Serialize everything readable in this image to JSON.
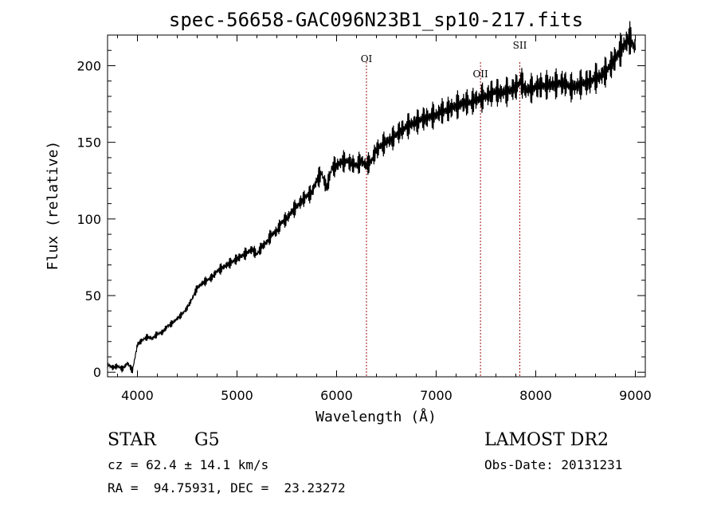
{
  "chart_data": {
    "type": "line",
    "title": "spec-56658-GAC096N23B1_sp10-217.fits",
    "xlabel": "Wavelength (Å)",
    "ylabel": "Flux (relative)",
    "xlim": [
      3700,
      9100
    ],
    "ylim": [
      -3,
      220
    ],
    "x_ticks": [
      4000,
      5000,
      6000,
      7000,
      8000,
      9000
    ],
    "y_ticks": [
      0,
      50,
      100,
      150,
      200
    ],
    "grid": false,
    "line_color": "#000000",
    "marker_color": "#a01010",
    "series": [
      {
        "x": [
          3700,
          3750,
          3800,
          3850,
          3900,
          3950,
          4000,
          4050,
          4100,
          4150,
          4200,
          4250,
          4300,
          4350,
          4400,
          4450,
          4500,
          4550,
          4600,
          4650,
          4700,
          4750,
          4800,
          4850,
          4900,
          4950,
          5000,
          5050,
          5100,
          5150,
          5200,
          5250,
          5300,
          5350,
          5400,
          5450,
          5500,
          5550,
          5600,
          5650,
          5700,
          5750,
          5800,
          5850,
          5900,
          5950,
          6000,
          6050,
          6100,
          6150,
          6200,
          6250,
          6300,
          6350,
          6400,
          6450,
          6500,
          6550,
          6600,
          6650,
          6700,
          6750,
          6800,
          6850,
          6900,
          6950,
          7000,
          7050,
          7100,
          7150,
          7200,
          7250,
          7300,
          7350,
          7400,
          7450,
          7500,
          7550,
          7600,
          7650,
          7700,
          7750,
          7800,
          7850,
          7900,
          7950,
          8000,
          8050,
          8100,
          8150,
          8200,
          8250,
          8300,
          8350,
          8400,
          8450,
          8500,
          8550,
          8600,
          8650,
          8700,
          8750,
          8800,
          8850,
          8900,
          8950,
          9000
        ],
        "y": [
          5,
          3,
          4,
          2,
          6,
          1,
          18,
          21,
          23,
          22,
          25,
          26,
          30,
          32,
          35,
          38,
          42,
          48,
          55,
          58,
          60,
          62,
          66,
          68,
          70,
          72,
          74,
          76,
          78,
          80,
          77,
          82,
          85,
          90,
          92,
          98,
          100,
          105,
          108,
          112,
          115,
          117,
          125,
          130,
          120,
          133,
          135,
          137,
          138,
          136,
          135,
          138,
          135,
          138,
          145,
          148,
          150,
          152,
          155,
          158,
          160,
          162,
          163,
          165,
          166,
          167,
          168,
          170,
          171,
          172,
          174,
          175,
          176,
          176,
          178,
          179,
          180,
          182,
          183,
          182,
          183,
          184,
          186,
          190,
          184,
          185,
          186,
          187,
          187,
          188,
          188,
          189,
          188,
          186,
          186,
          188,
          189,
          190,
          192,
          193,
          196,
          200,
          205,
          210,
          215,
          218,
          210
        ]
      }
    ],
    "lines": [
      {
        "label": "OI",
        "x": 6300
      },
      {
        "label": "OII",
        "x": 7445
      },
      {
        "label": "SII",
        "x": 7840
      }
    ]
  },
  "footer": {
    "class_label": "STAR",
    "subclass": "G5",
    "survey": "LAMOST DR2",
    "cz": "cz = 62.4 ± 14.1 km/s",
    "obs_date": "Obs-Date: 20131231",
    "coords": "RA =  94.75931, DEC =  23.23272"
  }
}
